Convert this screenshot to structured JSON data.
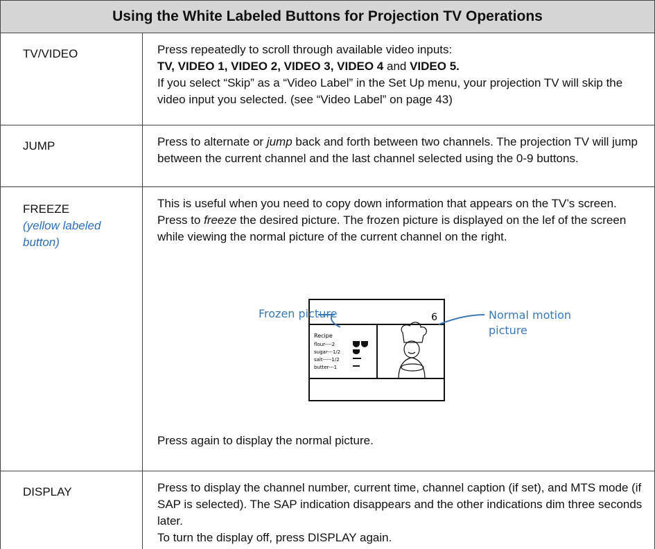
{
  "title": "Using the White Labeled Buttons for Projection TV Operations",
  "rows": [
    {
      "button": "TV/VIDEO",
      "paragraphs": [
        [
          "Press repeatedly to scroll through available video inputs:"
        ],
        [
          "TV, VIDEO 1, VIDEO 2, VIDEO 3, VIDEO 4",
          " and ",
          "VIDEO 5."
        ],
        [
          "If you select “Skip” as a “Video Label” in the Set Up menu, your projection TV will skip the video input you selected. (see “Video Label” on page 43)"
        ]
      ]
    },
    {
      "button": "JUMP",
      "paragraphs": [
        [
          "Press to alternate or ",
          "jump",
          " back and forth between two channels. The projection TV will jump between the current channel and the last channel selected using the 0-9 buttons."
        ]
      ]
    },
    {
      "button": "FREEZE",
      "note": "(yellow labeled button)",
      "paragraphs": [
        [
          "This is useful when you need to copy down information that appears on the TV’s screen."
        ],
        [
          "Press to ",
          "freeze",
          " the desired picture. The frozen picture is displayed on the lef of the screen while viewing the normal picture of the current channel on the right."
        ],
        [
          "Press again to display the normal picture."
        ]
      ],
      "figure": {
        "left_label": "Frozen picture",
        "right_label": "Normal motion picture",
        "channel": "6",
        "recipe": [
          "Recipe",
          "flour----2",
          "sugar---1/2",
          "salt-----1/2",
          "butter---1"
        ]
      }
    },
    {
      "button": "DISPLAY",
      "paragraphs": [
        [
          "Press to display the channel number, current time, channel caption (if set), and MTS mode (if SAP is selected). The SAP indication disappears and the other indications dim three seconds later."
        ],
        [
          "To turn the display off, press DISPLAY again."
        ]
      ]
    }
  ]
}
